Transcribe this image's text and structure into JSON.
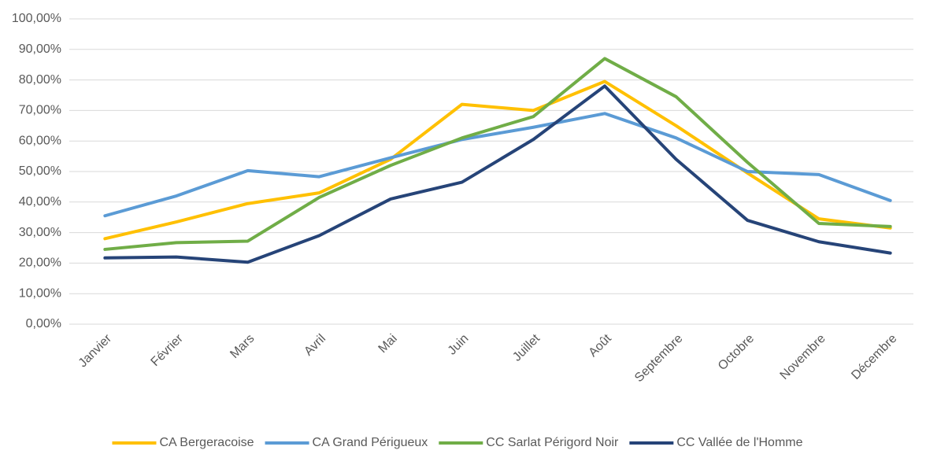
{
  "chart_data": {
    "type": "line",
    "categories": [
      "Janvier",
      "Février",
      "Mars",
      "Avril",
      "Mai",
      "Juin",
      "Juillet",
      "Août",
      "Septembre",
      "Octobre",
      "Novembre",
      "Décembre"
    ],
    "series": [
      {
        "name": "CA Bergeracoise",
        "color": "#FFC000",
        "values": [
          28,
          33.5,
          39.5,
          43,
          54,
          72,
          70,
          79.5,
          65,
          49.5,
          34.5,
          31.5
        ]
      },
      {
        "name": "CA Grand Périgueux",
        "color": "#5B9BD5",
        "values": [
          35.5,
          42,
          50.3,
          48.3,
          54.5,
          60.5,
          64.5,
          69,
          61,
          50,
          49,
          40.5
        ]
      },
      {
        "name": "CC Sarlat Périgord Noir",
        "color": "#70AD47",
        "values": [
          24.5,
          26.7,
          27.2,
          41.5,
          52,
          61,
          68,
          87,
          74.5,
          53,
          33,
          32
        ]
      },
      {
        "name": "CC Vallée de l'Homme",
        "color": "#264478",
        "values": [
          21.7,
          22,
          20.3,
          29,
          41,
          46.5,
          60.5,
          78,
          54,
          34,
          27,
          23.3
        ]
      }
    ],
    "ylim": [
      0,
      100
    ],
    "yticks": [
      {
        "value": 0,
        "label": "0,00%"
      },
      {
        "value": 10,
        "label": "10,00%"
      },
      {
        "value": 20,
        "label": "20,00%"
      },
      {
        "value": 30,
        "label": "30,00%"
      },
      {
        "value": 40,
        "label": "40,00%"
      },
      {
        "value": 50,
        "label": "50,00%"
      },
      {
        "value": 60,
        "label": "60,00%"
      },
      {
        "value": 70,
        "label": "70,00%"
      },
      {
        "value": 80,
        "label": "80,00%"
      },
      {
        "value": 90,
        "label": "90,00%"
      },
      {
        "value": 100,
        "label": "100,00%"
      }
    ],
    "grid": true,
    "legend": "bottom"
  }
}
